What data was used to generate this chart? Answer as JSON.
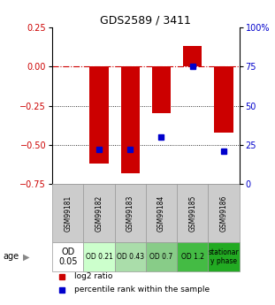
{
  "title": "GDS2589 / 3411",
  "samples": [
    "GSM99181",
    "GSM99182",
    "GSM99183",
    "GSM99184",
    "GSM99185",
    "GSM99186"
  ],
  "log2_ratio": [
    0.0,
    -0.62,
    -0.68,
    -0.3,
    0.13,
    -0.42
  ],
  "percentile_rank": [
    null,
    22,
    22,
    30,
    75,
    21
  ],
  "ylim_left": [
    -0.75,
    0.25
  ],
  "ylim_right": [
    0,
    100
  ],
  "yticks_left": [
    0.25,
    0,
    -0.25,
    -0.5,
    -0.75
  ],
  "yticks_right": [
    100,
    75,
    50,
    25,
    0
  ],
  "bar_color": "#cc0000",
  "dot_color": "#0000cc",
  "bar_width": 0.6,
  "age_labels": [
    "OD\n0.05",
    "OD 0.21",
    "OD 0.43",
    "OD 0.7",
    "OD 1.2",
    "stationar\ny phase"
  ],
  "age_colors": [
    "#ffffff",
    "#ccffcc",
    "#aaddaa",
    "#88cc88",
    "#44bb44",
    "#22aa22"
  ],
  "legend_red": "log2 ratio",
  "legend_blue": "percentile rank within the sample",
  "left_tick_color": "#cc0000",
  "right_tick_color": "#0000cc"
}
